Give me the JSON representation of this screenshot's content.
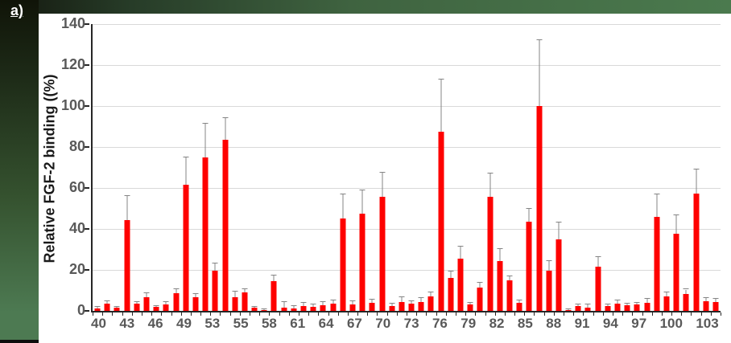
{
  "panel": {
    "label": "a)"
  },
  "chart_data": {
    "type": "bar",
    "title": "",
    "xlabel": "",
    "ylabel": "Relative FGF-2 binding ((%)",
    "ylim": [
      0,
      140
    ],
    "yticks": [
      0,
      20,
      40,
      60,
      80,
      100,
      120,
      140
    ],
    "grid": "horizontal",
    "legend": "none",
    "n_bars": 64,
    "xtick_interval": 3,
    "xtick_labels": [
      "40",
      "43",
      "46",
      "49",
      "53",
      "55",
      "58",
      "61",
      "64",
      "67",
      "70",
      "73",
      "76",
      "79",
      "82",
      "85",
      "88",
      "91",
      "94",
      "97",
      "100",
      "103"
    ],
    "values": [
      1.2,
      3.5,
      1.7,
      44.5,
      3.5,
      6.5,
      2,
      3,
      8.5,
      61.5,
      6.8,
      75,
      19.5,
      83.5,
      6.5,
      9,
      1.5,
      0.5,
      14.5,
      1.5,
      1.3,
      2.3,
      2,
      2.7,
      3.5,
      45,
      3.2,
      47.5,
      4,
      55.5,
      2.5,
      4.5,
      3.6,
      4.5,
      7.2,
      87.5,
      16.2,
      25.5,
      3.3,
      11.5,
      55.5,
      24.2,
      15,
      4.1,
      43.7,
      100,
      19.5,
      35,
      0.5,
      2.2,
      1.5,
      21.5,
      2.3,
      3.5,
      2.8,
      3.2,
      4,
      46,
      7,
      37.8,
      8.4,
      57.2,
      4.8,
      4.4
    ],
    "errors_plus": [
      0.8,
      1.3,
      0.3,
      11.5,
      1,
      2.1,
      0.5,
      1.2,
      2,
      13.5,
      1.5,
      16.5,
      3.5,
      10.5,
      3,
      1.5,
      0.3,
      0.3,
      2.8,
      2.7,
      0.9,
      1.5,
      1.1,
      1.5,
      1.7,
      12,
      1.4,
      11.5,
      1.6,
      12,
      1.1,
      2.1,
      1,
      1.6,
      1.8,
      25.5,
      3,
      6,
      0.8,
      2.2,
      11.5,
      6.1,
      1.8,
      1.1,
      6.1,
      32,
      5,
      8,
      0.3,
      0.9,
      1.5,
      4.7,
      0.9,
      1.5,
      0.9,
      0.9,
      2,
      11,
      2,
      8.7,
      2,
      11.8,
      1.6,
      1.5
    ],
    "bar_color": "#fe0100",
    "error_color": "#848484",
    "grid_color": "#d9d9d9",
    "axis_color": "#262626",
    "tick_label_color": "#595959",
    "axis_title_color": "#1a1a1a",
    "frame_colors": {
      "band_green": "#4d7a52",
      "band_dark": "#14180f",
      "chip_black": "#0d0d0d"
    }
  }
}
